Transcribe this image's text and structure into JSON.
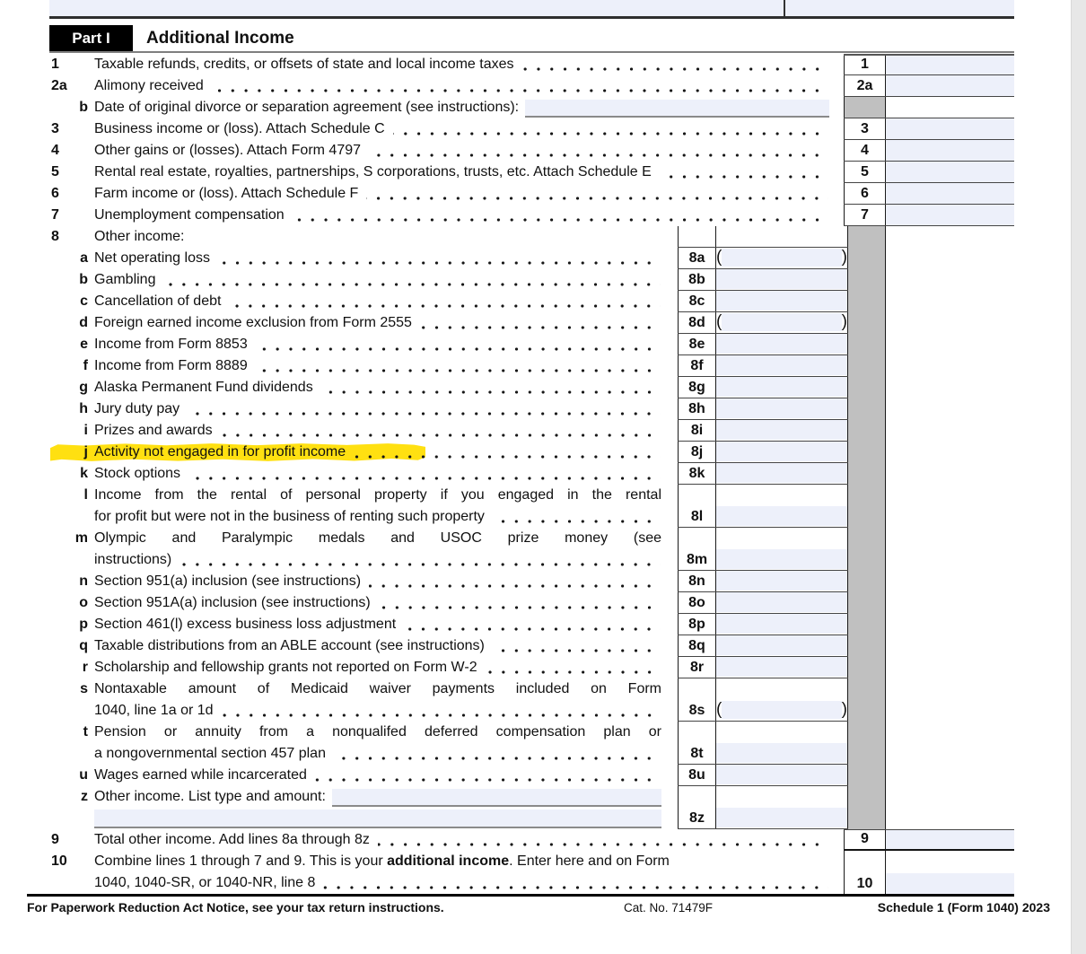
{
  "part": {
    "label": "Part I",
    "title": "Additional Income"
  },
  "colors": {
    "field_blue": "#edf0fa",
    "cell_gray": "#c0c0c0",
    "highlight_yellow": "#ffe011",
    "scrollbar_gray": "#e7e7e7"
  },
  "rows": [
    {
      "id": "1",
      "num": "1",
      "ns": "main",
      "zone": "main",
      "lines": [
        "Taxable refunds, credits, or offsets of state and local income taxes"
      ],
      "leaders": true,
      "box": "1",
      "field": "blue"
    },
    {
      "id": "2a",
      "num": "2a",
      "ns": "main",
      "zone": "main",
      "lines": [
        "Alimony received"
      ],
      "leaders": true,
      "box": "2a",
      "field": "blue"
    },
    {
      "id": "2b",
      "num": "b",
      "ns": "sub",
      "zone": "main",
      "lines": [
        "Date of original divorce or separation agreement (see instructions):"
      ],
      "leaders": false,
      "box": null,
      "grayBox": true,
      "field": "none",
      "dateInput": true
    },
    {
      "id": "3",
      "num": "3",
      "ns": "main",
      "zone": "main",
      "lines": [
        "Business income or (loss). Attach Schedule C"
      ],
      "leaders": true,
      "box": "3",
      "field": "blue"
    },
    {
      "id": "4",
      "num": "4",
      "ns": "main",
      "zone": "main",
      "lines": [
        "Other gains or (losses). Attach Form 4797"
      ],
      "leaders": true,
      "box": "4",
      "field": "blue"
    },
    {
      "id": "5",
      "num": "5",
      "ns": "main",
      "zone": "main",
      "lines": [
        "Rental real estate, royalties, partnerships, S corporations, trusts, etc. Attach Schedule E"
      ],
      "leaders": true,
      "box": "5",
      "field": "blue"
    },
    {
      "id": "6",
      "num": "6",
      "ns": "main",
      "zone": "main",
      "lines": [
        "Farm income or (loss). Attach Schedule F"
      ],
      "leaders": true,
      "box": "6",
      "field": "blue"
    },
    {
      "id": "7",
      "num": "7",
      "ns": "main",
      "zone": "main",
      "lines": [
        "Unemployment compensation"
      ],
      "leaders": true,
      "box": "7",
      "field": "blue"
    },
    {
      "id": "8",
      "num": "8",
      "ns": "main",
      "zone": "sub",
      "lines": [
        "Other income:"
      ],
      "leaders": false,
      "box": null,
      "field": "none"
    },
    {
      "id": "8a",
      "num": "a",
      "ns": "sub",
      "zone": "sub",
      "lines": [
        "Net operating loss"
      ],
      "leaders": true,
      "box": "8a",
      "field": "paren"
    },
    {
      "id": "8b",
      "num": "b",
      "ns": "sub",
      "zone": "sub",
      "lines": [
        "Gambling"
      ],
      "leaders": true,
      "box": "8b",
      "field": "blue"
    },
    {
      "id": "8c",
      "num": "c",
      "ns": "sub",
      "zone": "sub",
      "lines": [
        "Cancellation of debt"
      ],
      "leaders": true,
      "box": "8c",
      "field": "blue"
    },
    {
      "id": "8d",
      "num": "d",
      "ns": "sub",
      "zone": "sub",
      "lines": [
        "Foreign earned income exclusion from Form 2555"
      ],
      "leaders": true,
      "box": "8d",
      "field": "paren"
    },
    {
      "id": "8e",
      "num": "e",
      "ns": "sub",
      "zone": "sub",
      "lines": [
        "Income from Form 8853"
      ],
      "leaders": true,
      "box": "8e",
      "field": "blue"
    },
    {
      "id": "8f",
      "num": "f",
      "ns": "sub",
      "zone": "sub",
      "lines": [
        "Income from Form 8889"
      ],
      "leaders": true,
      "box": "8f",
      "field": "blue"
    },
    {
      "id": "8g",
      "num": "g",
      "ns": "sub",
      "zone": "sub",
      "lines": [
        "Alaska Permanent Fund dividends"
      ],
      "leaders": true,
      "box": "8g",
      "field": "blue"
    },
    {
      "id": "8h",
      "num": "h",
      "ns": "sub",
      "zone": "sub",
      "lines": [
        "Jury duty pay"
      ],
      "leaders": true,
      "box": "8h",
      "field": "blue"
    },
    {
      "id": "8i",
      "num": "i",
      "ns": "sub",
      "zone": "sub",
      "lines": [
        "Prizes and awards"
      ],
      "leaders": true,
      "box": "8i",
      "field": "blue"
    },
    {
      "id": "8j",
      "num": "j",
      "ns": "sub",
      "zone": "sub",
      "lines": [
        "Activity not engaged in for profit income"
      ],
      "leaders": true,
      "box": "8j",
      "field": "blue",
      "highlight": true
    },
    {
      "id": "8k",
      "num": "k",
      "ns": "sub",
      "zone": "sub",
      "lines": [
        "Stock options"
      ],
      "leaders": true,
      "box": "8k",
      "field": "blue"
    },
    {
      "id": "8l",
      "num": "l",
      "ns": "sub",
      "zone": "sub",
      "lines": [
        "Income from the rental of personal property if you engaged in the rental",
        "for profit but were not in the business of renting such property"
      ],
      "leaders": true,
      "justify": true,
      "box": "8l",
      "field": "blue"
    },
    {
      "id": "8m",
      "num": "m",
      "ns": "sub",
      "zone": "sub",
      "lines": [
        "Olympic and Paralympic medals and USOC prize money (see",
        "instructions)"
      ],
      "leaders": true,
      "justify": true,
      "box": "8m",
      "field": "blue"
    },
    {
      "id": "8n",
      "num": "n",
      "ns": "sub",
      "zone": "sub",
      "lines": [
        "Section 951(a) inclusion (see instructions)"
      ],
      "leaders": true,
      "box": "8n",
      "field": "blue"
    },
    {
      "id": "8o",
      "num": "o",
      "ns": "sub",
      "zone": "sub",
      "lines": [
        "Section 951A(a) inclusion (see instructions)"
      ],
      "leaders": true,
      "box": "8o",
      "field": "blue"
    },
    {
      "id": "8p",
      "num": "p",
      "ns": "sub",
      "zone": "sub",
      "lines": [
        "Section 461(l) excess business loss adjustment"
      ],
      "leaders": true,
      "box": "8p",
      "field": "blue"
    },
    {
      "id": "8q",
      "num": "q",
      "ns": "sub",
      "zone": "sub",
      "lines": [
        "Taxable distributions from an ABLE account (see instructions)"
      ],
      "leaders": true,
      "box": "8q",
      "field": "blue"
    },
    {
      "id": "8r",
      "num": "r",
      "ns": "sub",
      "zone": "sub",
      "lines": [
        "Scholarship and fellowship grants not reported on Form W-2"
      ],
      "leaders": true,
      "box": "8r",
      "field": "blue"
    },
    {
      "id": "8s",
      "num": "s",
      "ns": "sub",
      "zone": "sub",
      "lines": [
        "Nontaxable amount of Medicaid waiver payments included on Form",
        "1040, line 1a or 1d"
      ],
      "leaders": true,
      "justify": true,
      "box": "8s",
      "field": "paren"
    },
    {
      "id": "8t",
      "num": "t",
      "ns": "sub",
      "zone": "sub",
      "lines": [
        "Pension or annuity from a nonqualifed deferred compensation plan or",
        "a nongovernmental section 457 plan"
      ],
      "leaders": true,
      "justify": true,
      "box": "8t",
      "field": "blue"
    },
    {
      "id": "8u",
      "num": "u",
      "ns": "sub",
      "zone": "sub",
      "lines": [
        "Wages earned while incarcerated"
      ],
      "leaders": true,
      "box": "8u",
      "field": "blue"
    },
    {
      "id": "8z",
      "num": "z",
      "ns": "sub",
      "zone": "sub",
      "lines": [
        "Other income. List type and amount:",
        ""
      ],
      "leaders": false,
      "box": "8z",
      "field": "blue",
      "zInputs": true
    },
    {
      "id": "9",
      "num": "9",
      "ns": "main",
      "zone": "main",
      "lines": [
        "Total other income. Add lines 8a through 8z"
      ],
      "leaders": true,
      "box": "9",
      "field": "blue"
    },
    {
      "id": "10",
      "num": "10",
      "ns": "main",
      "zone": "main",
      "lines": [
        {
          "pre": "Combine lines 1 through 7 and 9. This is your ",
          "bold": "additional income",
          "post": ". Enter here and on Form"
        },
        "1040, 1040-SR, or 1040-NR, line 8"
      ],
      "leaders": true,
      "box": "10",
      "field": "blue",
      "fieldBottom": true
    }
  ],
  "footer": {
    "left": "For Paperwork Reduction Act Notice, see your tax return instructions.",
    "center": "Cat. No. 71479F",
    "right": "Schedule 1 (Form 1040) 2023"
  }
}
